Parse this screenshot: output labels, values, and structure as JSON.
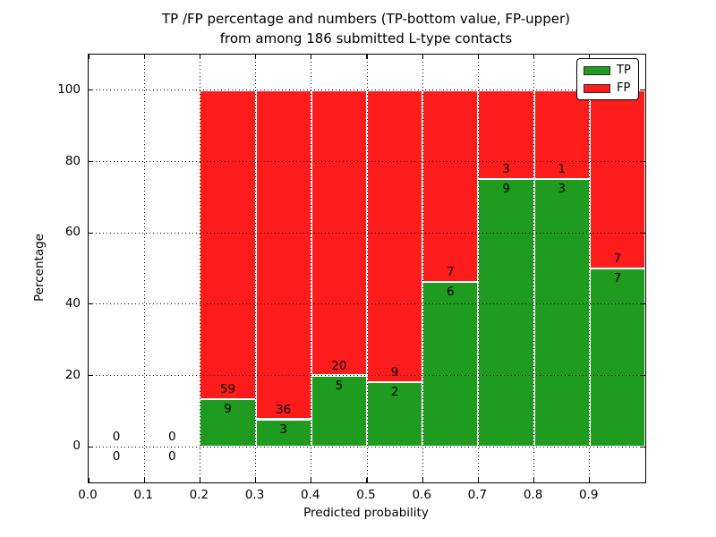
{
  "chart_data": {
    "type": "bar",
    "stacked": true,
    "title_line1": "TP /FP percentage and numbers (TP-bottom value, FP-upper)",
    "title_line2": "from among 186 submitted L-type contacts",
    "xlabel": "Predicted probability",
    "ylabel": "Percentage",
    "total_contacts": 186,
    "x_tick_values": [
      0.0,
      0.1,
      0.2,
      0.3,
      0.4,
      0.5,
      0.6,
      0.7,
      0.8,
      0.9
    ],
    "x_tick_labels": [
      "0.0",
      "0.1",
      "0.2",
      "0.3",
      "0.4",
      "0.5",
      "0.6",
      "0.7",
      "0.8",
      "0.9"
    ],
    "y_tick_values": [
      0,
      20,
      40,
      60,
      80,
      100
    ],
    "y_tick_labels": [
      "0",
      "20",
      "40",
      "60",
      "80",
      "100"
    ],
    "xlim": [
      0.0,
      1.0
    ],
    "ylim": [
      -10,
      110
    ],
    "grid": "dotted",
    "bar_width": 0.1,
    "bins": [
      {
        "x0": 0.0,
        "x1": 0.1,
        "tp": 0,
        "fp": 0
      },
      {
        "x0": 0.1,
        "x1": 0.2,
        "tp": 0,
        "fp": 0
      },
      {
        "x0": 0.2,
        "x1": 0.3,
        "tp": 9,
        "fp": 59
      },
      {
        "x0": 0.3,
        "x1": 0.4,
        "tp": 3,
        "fp": 36
      },
      {
        "x0": 0.4,
        "x1": 0.5,
        "tp": 5,
        "fp": 20
      },
      {
        "x0": 0.5,
        "x1": 0.6,
        "tp": 2,
        "fp": 9
      },
      {
        "x0": 0.6,
        "x1": 0.7,
        "tp": 6,
        "fp": 7
      },
      {
        "x0": 0.7,
        "x1": 0.8,
        "tp": 9,
        "fp": 3
      },
      {
        "x0": 0.8,
        "x1": 0.9,
        "tp": 3,
        "fp": 1
      },
      {
        "x0": 0.9,
        "x1": 1.0,
        "tp": 7,
        "fp": 7
      }
    ],
    "legend": {
      "position": "upper right",
      "items": [
        {
          "label": "TP",
          "color": "#1f9b1f"
        },
        {
          "label": "FP",
          "color": "#fc1c1c"
        }
      ]
    }
  }
}
